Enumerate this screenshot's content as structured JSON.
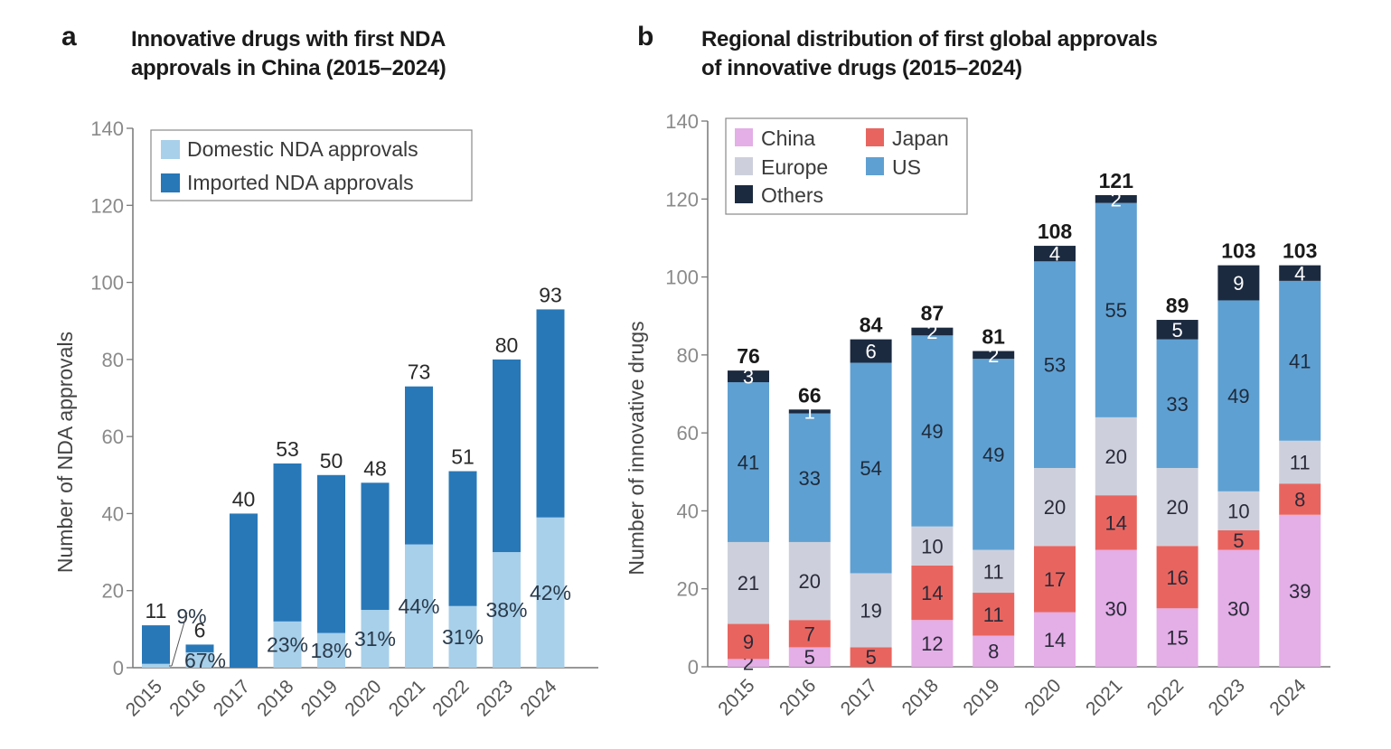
{
  "panels": {
    "a": {
      "letter": "a",
      "title_line1": "Innovative drugs with first NDA",
      "title_line2": "approvals in China (2015–2024)"
    },
    "b": {
      "letter": "b",
      "title_line1": "Regional distribution of first global approvals",
      "title_line2": "of innovative drugs (2015–2024)"
    }
  },
  "chart_data": [
    {
      "type": "bar",
      "stacked": true,
      "title": "Innovative drugs with first NDA approvals in China (2015–2024)",
      "xlabel": "",
      "ylabel": "Number of NDA approvals",
      "ylim": [
        0,
        140
      ],
      "yticks": [
        0,
        20,
        40,
        60,
        80,
        100,
        120,
        140
      ],
      "categories": [
        "2015",
        "2016",
        "2017",
        "2018",
        "2019",
        "2020",
        "2021",
        "2022",
        "2023",
        "2024"
      ],
      "series": [
        {
          "name": "Domestic NDA approvals",
          "color": "#a8d0ea",
          "values": [
            1,
            4,
            0,
            12,
            9,
            15,
            32,
            16,
            30,
            39
          ]
        },
        {
          "name": "Imported NDA approvals",
          "color": "#2878b8",
          "values": [
            10,
            2,
            40,
            41,
            41,
            33,
            41,
            35,
            50,
            54
          ]
        }
      ],
      "totals": [
        11,
        6,
        40,
        53,
        50,
        48,
        73,
        51,
        80,
        93
      ],
      "domestic_share_labels": [
        "9%",
        "67%",
        "",
        "23%",
        "18%",
        "31%",
        "44%",
        "31%",
        "38%",
        "42%"
      ],
      "legend": {
        "position": "top-left",
        "entries": [
          "Domestic NDA approvals",
          "Imported NDA approvals"
        ]
      },
      "grid": false
    },
    {
      "type": "bar",
      "stacked": true,
      "title": "Regional distribution of first global approvals of innovative drugs (2015–2024)",
      "xlabel": "",
      "ylabel": "Number of innovative drugs",
      "ylim": [
        0,
        140
      ],
      "yticks": [
        0,
        20,
        40,
        60,
        80,
        100,
        120,
        140
      ],
      "categories": [
        "2015",
        "2016",
        "2017",
        "2018",
        "2019",
        "2020",
        "2021",
        "2022",
        "2023",
        "2024"
      ],
      "series": [
        {
          "name": "China",
          "color": "#e4aee6",
          "label_color": "#2a2a3a",
          "values": [
            2,
            5,
            0,
            12,
            8,
            14,
            30,
            15,
            30,
            39
          ]
        },
        {
          "name": "Japan",
          "color": "#e8655f",
          "label_color": "#2a2a3a",
          "values": [
            9,
            7,
            5,
            14,
            11,
            17,
            14,
            16,
            5,
            8
          ]
        },
        {
          "name": "Europe",
          "color": "#cdd0dc",
          "label_color": "#2a2a3a",
          "values": [
            21,
            20,
            19,
            10,
            11,
            20,
            20,
            20,
            10,
            11
          ]
        },
        {
          "name": "US",
          "color": "#5fa0d2",
          "label_color": "#1e2a3a",
          "values": [
            41,
            33,
            54,
            49,
            49,
            53,
            55,
            33,
            49,
            41
          ]
        },
        {
          "name": "Others",
          "color": "#1c2a40",
          "label_color": "#ffffff",
          "values": [
            3,
            1,
            6,
            2,
            2,
            4,
            2,
            5,
            9,
            4
          ]
        }
      ],
      "totals": [
        76,
        66,
        84,
        87,
        81,
        108,
        121,
        89,
        103,
        103
      ],
      "legend": {
        "position": "top-left",
        "columns": 2,
        "entries": [
          "China",
          "Japan",
          "Europe",
          "US",
          "Others"
        ]
      },
      "grid": false
    }
  ]
}
